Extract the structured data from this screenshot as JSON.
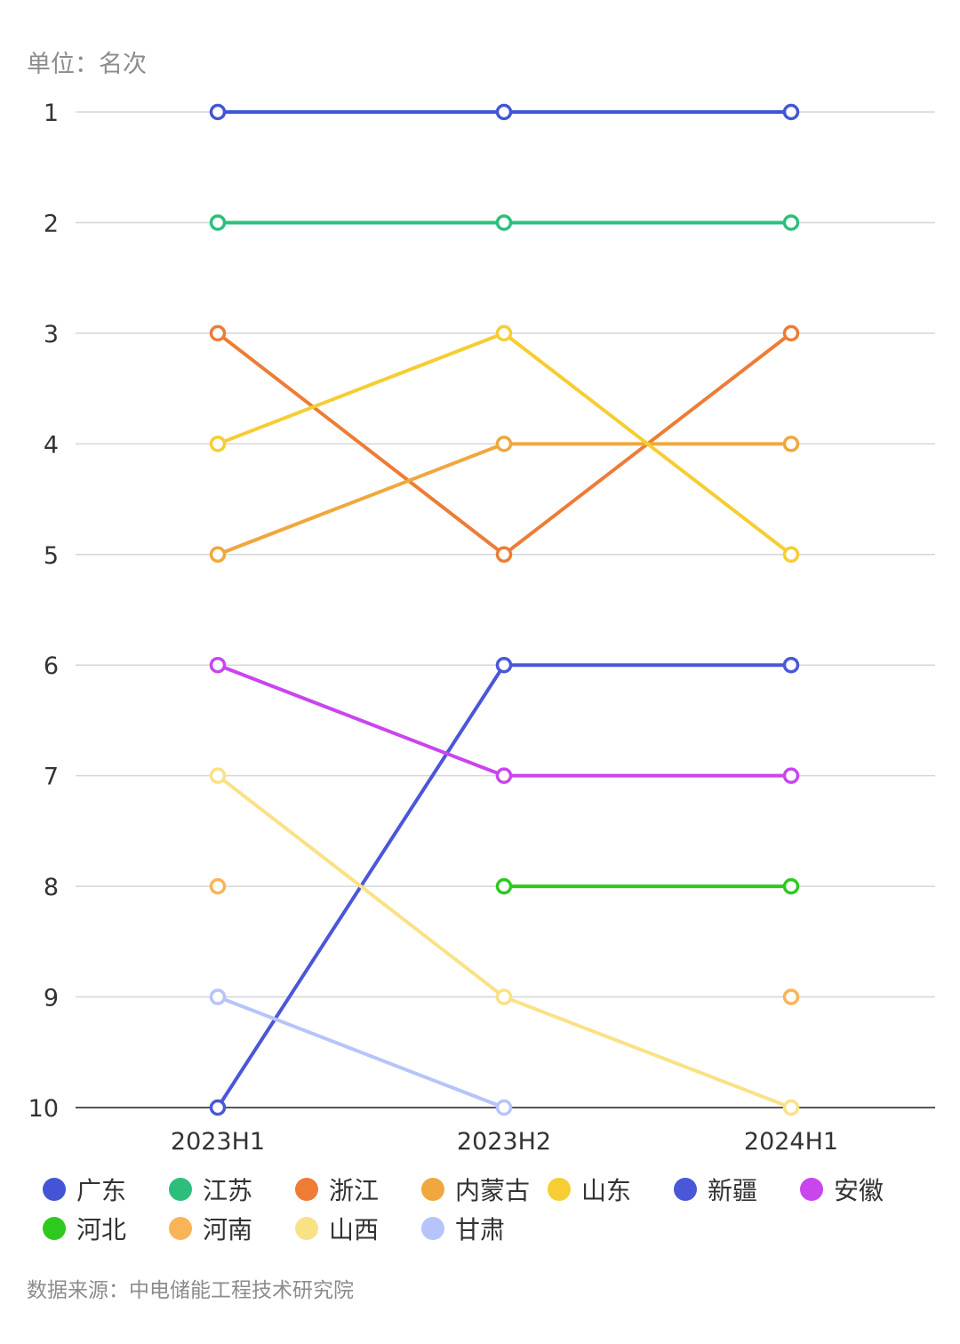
{
  "unit_label": "单位：名次",
  "source": "数据来源：中电储能工程技术研究院",
  "chart_data": {
    "type": "line",
    "x": [
      "2023H1",
      "2023H2",
      "2024H1"
    ],
    "y_ticks": [
      1,
      2,
      3,
      4,
      5,
      6,
      7,
      8,
      9,
      10
    ],
    "ylim": [
      1,
      10
    ],
    "y_inverted": true,
    "grid": true,
    "legend_position": "bottom",
    "series": [
      {
        "name": "广东",
        "color": "#4355d6",
        "values": [
          1,
          1,
          1
        ]
      },
      {
        "name": "江苏",
        "color": "#2cbf7c",
        "values": [
          2,
          2,
          2
        ]
      },
      {
        "name": "浙江",
        "color": "#ee7c35",
        "values": [
          3,
          5,
          3
        ]
      },
      {
        "name": "内蒙古",
        "color": "#f0a73d",
        "values": [
          5,
          4,
          4
        ]
      },
      {
        "name": "山东",
        "color": "#f6cd32",
        "values": [
          4,
          3,
          5
        ]
      },
      {
        "name": "新疆",
        "color": "#4a57d8",
        "values": [
          10,
          6,
          6
        ]
      },
      {
        "name": "安徽",
        "color": "#c945ee",
        "values": [
          6,
          7,
          7
        ]
      },
      {
        "name": "河北",
        "color": "#2ec91f",
        "values": [
          null,
          8,
          8
        ]
      },
      {
        "name": "河南",
        "color": "#f9b458",
        "values": [
          8,
          null,
          9
        ]
      },
      {
        "name": "山西",
        "color": "#fbe186",
        "values": [
          7,
          9,
          10
        ]
      },
      {
        "name": "甘肃",
        "color": "#b6c4fb",
        "values": [
          9,
          10,
          null
        ]
      }
    ]
  }
}
